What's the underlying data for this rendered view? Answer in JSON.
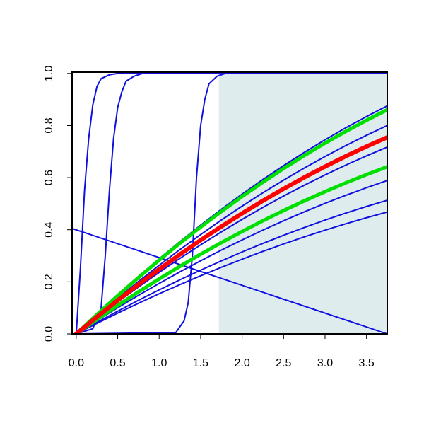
{
  "chart_data": {
    "type": "line",
    "xlim": [
      -0.05,
      3.75
    ],
    "ylim": [
      0,
      1.005
    ],
    "xticks": [
      {
        "value": 0,
        "label": "0.0"
      },
      0.5,
      {
        "value": 1,
        "label": "1.0"
      },
      1.5,
      {
        "value": 2,
        "label": "2.0"
      },
      2.5,
      {
        "value": 3,
        "label": "3.0"
      },
      3.5
    ],
    "yticks": [
      {
        "value": 0,
        "label": "0.0"
      },
      0.2,
      0.4,
      0.6,
      0.8,
      {
        "value": 1,
        "label": "1.0"
      }
    ],
    "shade": {
      "x": [
        1.72,
        3.75
      ],
      "y": [
        0,
        1
      ],
      "color": "#dfeced"
    },
    "x": [
      0,
      0.25,
      0.5,
      0.75,
      1,
      1.25,
      1.5,
      1.75,
      2,
      2.25,
      2.5,
      2.75,
      3,
      3.25,
      3.5,
      3.75
    ],
    "series": [
      {
        "color": "#1010e0",
        "line_width": 2,
        "values": [
          0,
          0.0759,
          0.1492,
          0.2201,
          0.2884,
          0.3543,
          0.4176,
          0.4785,
          0.5368,
          0.5928,
          0.6461,
          0.697,
          0.7454,
          0.7914,
          0.8347,
          0.8757
        ]
      },
      {
        "color": "#1010e0",
        "line_width": 2,
        "values": [
          0,
          0.0693,
          0.1363,
          0.2011,
          0.2635,
          0.3237,
          0.3816,
          0.4373,
          0.4906,
          0.5417,
          0.5904,
          0.637,
          0.6812,
          0.7231,
          0.7628,
          0.8002
        ]
      },
      {
        "color": "#1010e0",
        "line_width": 2,
        "values": [
          0,
          0.0621,
          0.1222,
          0.1802,
          0.2362,
          0.2901,
          0.342,
          0.3919,
          0.4397,
          0.4855,
          0.5292,
          0.5709,
          0.6105,
          0.6481,
          0.6836,
          0.7172
        ]
      },
      {
        "color": "#1010e0",
        "line_width": 2,
        "values": [
          0,
          0.051,
          0.1003,
          0.148,
          0.1939,
          0.2382,
          0.2808,
          0.3218,
          0.361,
          0.3986,
          0.4345,
          0.4687,
          0.5012,
          0.5321,
          0.5613,
          0.5888
        ]
      },
      {
        "color": "#1010e0",
        "line_width": 2,
        "values": [
          0,
          0.0445,
          0.0874,
          0.129,
          0.169,
          0.2077,
          0.2448,
          0.2805,
          0.3147,
          0.3475,
          0.3788,
          0.4086,
          0.437,
          0.4639,
          0.4893,
          0.5133
        ]
      },
      {
        "color": "#1010e0",
        "line_width": 2,
        "values": [
          0,
          0.0405,
          0.0797,
          0.1176,
          0.1541,
          0.1893,
          0.2232,
          0.2558,
          0.2869,
          0.3168,
          0.3453,
          0.3726,
          0.3984,
          0.423,
          0.4462,
          0.468
        ]
      },
      {
        "color": "#1010e0",
        "line_width": 2,
        "x": [
          0,
          0.05,
          0.1,
          0.15,
          0.2,
          0.25,
          0.3,
          0.4,
          0.5,
          3.75
        ],
        "values": [
          0,
          0.25,
          0.55,
          0.75,
          0.88,
          0.95,
          0.98,
          0.995,
          1,
          1
        ]
      },
      {
        "color": "#1010e0",
        "line_width": 2,
        "x": [
          0,
          0.2,
          0.3,
          0.35,
          0.4,
          0.45,
          0.5,
          0.55,
          0.6,
          0.7,
          0.8,
          3.75
        ],
        "values": [
          0,
          0.02,
          0.1,
          0.3,
          0.55,
          0.75,
          0.87,
          0.93,
          0.97,
          0.99,
          1,
          1
        ]
      },
      {
        "color": "#1010e0",
        "line_width": 2,
        "x": [
          0,
          1.2,
          1.3,
          1.35,
          1.4,
          1.45,
          1.5,
          1.55,
          1.6,
          1.7,
          1.8,
          3.75
        ],
        "values": [
          0,
          0.005,
          0.05,
          0.12,
          0.3,
          0.6,
          0.8,
          0.9,
          0.96,
          0.99,
          1,
          1
        ]
      },
      {
        "color": "#1010e0",
        "line_width": 2,
        "x": [
          -0.05,
          3.75
        ],
        "values": [
          0.405,
          0
        ]
      },
      {
        "color": "#00e000",
        "line_width": 5,
        "values": [
          0,
          0.0746,
          0.1466,
          0.2163,
          0.2834,
          0.3482,
          0.4104,
          0.4703,
          0.5276,
          0.5825,
          0.635,
          0.685,
          0.7326,
          0.7777,
          0.8203,
          0.8606
        ]
      },
      {
        "color": "#00e000",
        "line_width": 5,
        "values": [
          0,
          0.0556,
          0.1093,
          0.1612,
          0.2113,
          0.2596,
          0.306,
          0.3506,
          0.3934,
          0.4344,
          0.4735,
          0.5108,
          0.5462,
          0.5799,
          0.6117,
          0.6417
        ]
      },
      {
        "color": "#ff0000",
        "line_width": 6,
        "values": [
          0,
          0.0654,
          0.1286,
          0.1897,
          0.2486,
          0.3054,
          0.36,
          0.4125,
          0.4628,
          0.511,
          0.557,
          0.6009,
          0.6426,
          0.6822,
          0.7196,
          0.7549
        ]
      }
    ]
  }
}
